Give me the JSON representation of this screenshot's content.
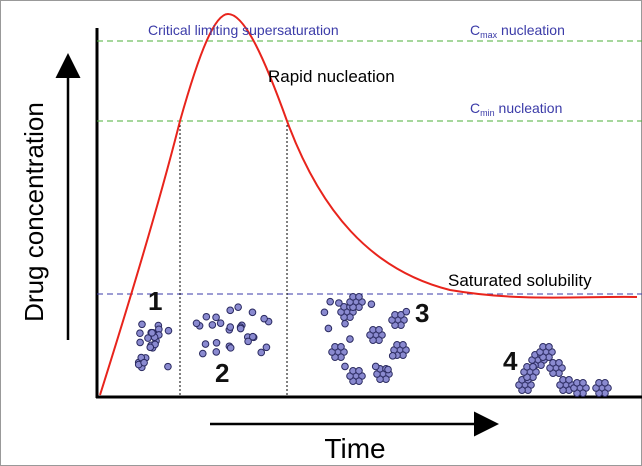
{
  "labels": {
    "critical": "Critical limiting supersaturation",
    "cmax": {
      "base": "C",
      "sub": "max",
      "rest": " nucleation"
    },
    "cmin": {
      "base": "C",
      "sub": "min",
      "rest": " nucleation"
    },
    "rapid": "Rapid nucleation",
    "saturated": "Saturated solubility",
    "y_axis": "Drug concentration",
    "x_axis": "Time",
    "stages": [
      "1",
      "2",
      "3",
      "4"
    ]
  }
}
